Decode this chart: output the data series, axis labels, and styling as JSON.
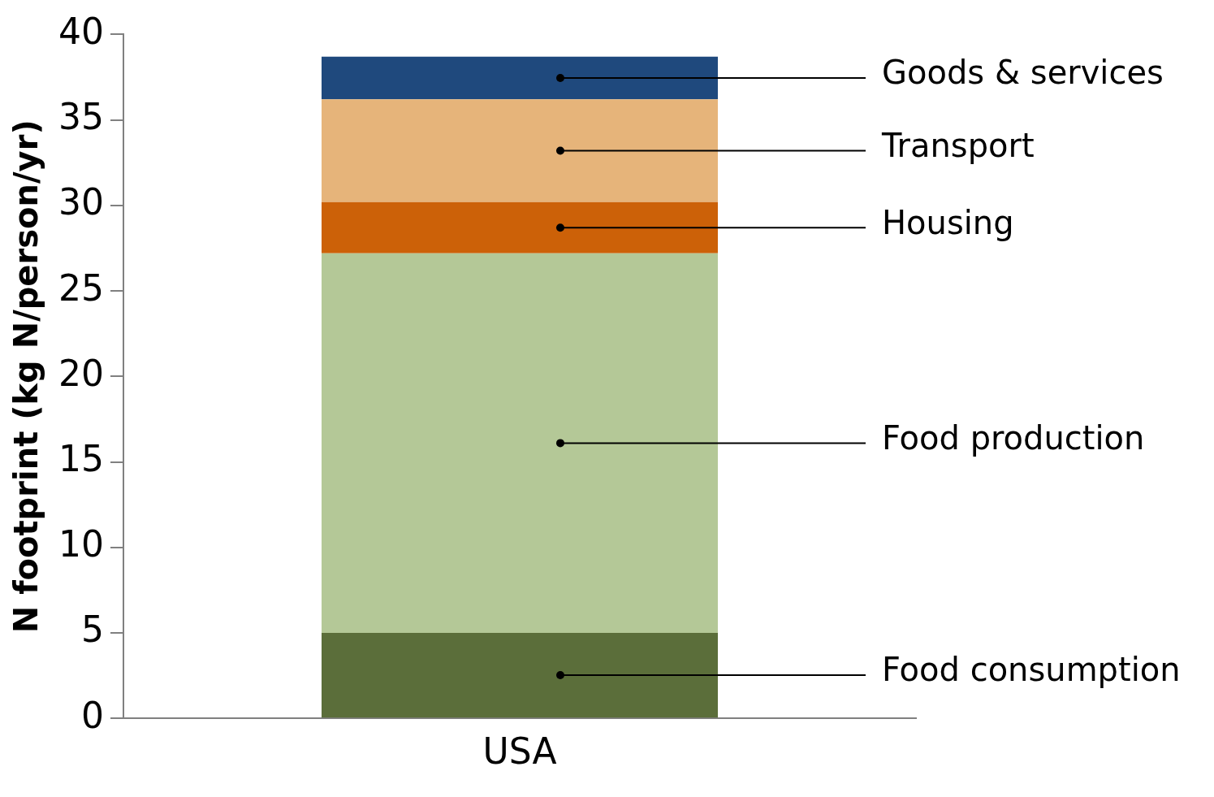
{
  "chart_data": {
    "type": "bar",
    "stacked": true,
    "categories": [
      "USA"
    ],
    "ylabel": "N footprint (kg N/person/yr)",
    "ylim": [
      0,
      40
    ],
    "yticks": [
      0,
      5,
      10,
      15,
      20,
      25,
      30,
      35,
      40
    ],
    "grid": false,
    "series": [
      {
        "name": "Food consumption",
        "color": "#5b6e3a",
        "values": [
          5.0
        ]
      },
      {
        "name": "Food production",
        "color": "#b4c897",
        "values": [
          22.2
        ]
      },
      {
        "name": "Housing",
        "color": "#cc6108",
        "values": [
          3.0
        ]
      },
      {
        "name": "Transport",
        "color": "#e6b47a",
        "values": [
          6.0
        ]
      },
      {
        "name": "Goods & services",
        "color": "#1f497d",
        "values": [
          2.5
        ]
      }
    ]
  }
}
